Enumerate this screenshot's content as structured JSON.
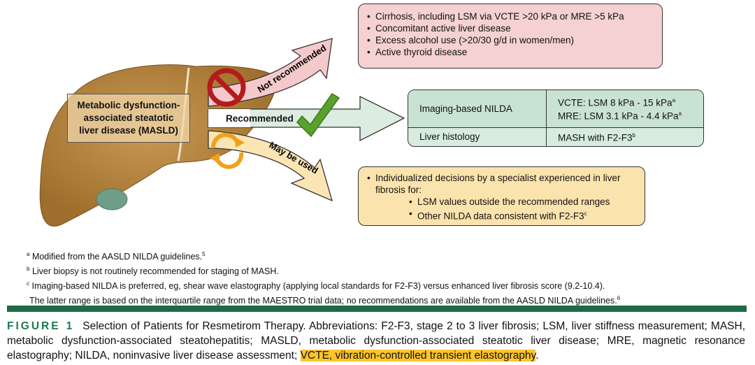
{
  "diagram": {
    "masld_label": [
      "Metabolic dysfunction-",
      "associated steatotic",
      "liver disease (MASLD)"
    ],
    "arrows": {
      "not_recommended": "Not recommended",
      "recommended": "Recommended",
      "may_be_used": "May be used"
    },
    "not_recommended_box": [
      "Cirrhosis, including LSM via VCTE >20 kPa or MRE >5 kPa",
      "Concomitant active liver disease",
      "Excess alcohol use (>20/30 g/d in women/men)",
      "Active thyroid disease"
    ],
    "recommended_table": {
      "rows": [
        {
          "label": "Imaging-based NILDA",
          "values": [
            {
              "text": "VCTE: LSM 8 kPa - 15 kPa",
              "sup": "a"
            },
            {
              "text": "MRE: LSM 3.1 kPa - 4.4 kPa",
              "sup": "a"
            }
          ]
        },
        {
          "label": "Liver histology",
          "values": [
            {
              "text": "MASH with F2-F3",
              "sup": "b"
            }
          ]
        }
      ]
    },
    "may_be_used_box": {
      "main": "Individualized decisions by a specialist experienced in liver fibrosis for:",
      "sub": [
        {
          "text": "LSM values outside the recommended ranges",
          "sup": ""
        },
        {
          "text": "Other NILDA data consistent with F2-F3",
          "sup": "c"
        }
      ]
    },
    "colors": {
      "not_recommended": "#f5d1d2",
      "recommended": "#d8ebdf",
      "may_be_used": "#fbe3ad",
      "liver": "#b8863f",
      "accent_bar": "#1d6a45"
    }
  },
  "footnotes": [
    {
      "mark": "a",
      "text": "Modified from the AASLD NILDA guidelines.",
      "ref": "5"
    },
    {
      "mark": "b",
      "text": "Liver biopsy is not routinely recommended for staging of MASH.",
      "ref": ""
    },
    {
      "mark": "c",
      "text": "Imaging-based NILDA is preferred, eg, shear wave elastography (applying local standards for F2-F3) versus enhanced liver fibrosis score (9.2-10.4).",
      "ref": ""
    },
    {
      "mark": "",
      "text": "The latter range is based on the interquartile range from the MAESTRO trial data; no recommendations are available from the AASLD NILDA guidelines.",
      "ref": "6"
    }
  ],
  "caption": {
    "label": "FIGURE 1",
    "text": "Selection of Patients for Resmetirom Therapy. Abbreviations: F2-F3, stage 2 to 3 liver fibrosis; LSM, liver stiffness measurement; MASH, metabolic dysfunction-associated steatohepatitis; MASLD, metabolic dysfunction-associated steatotic liver disease; MRE, magnetic resonance elastography; NILDA, noninvasive liver disease assessment; ",
    "highlighted": "VCTE, vibration-controlled transient elastography",
    "end": "."
  }
}
